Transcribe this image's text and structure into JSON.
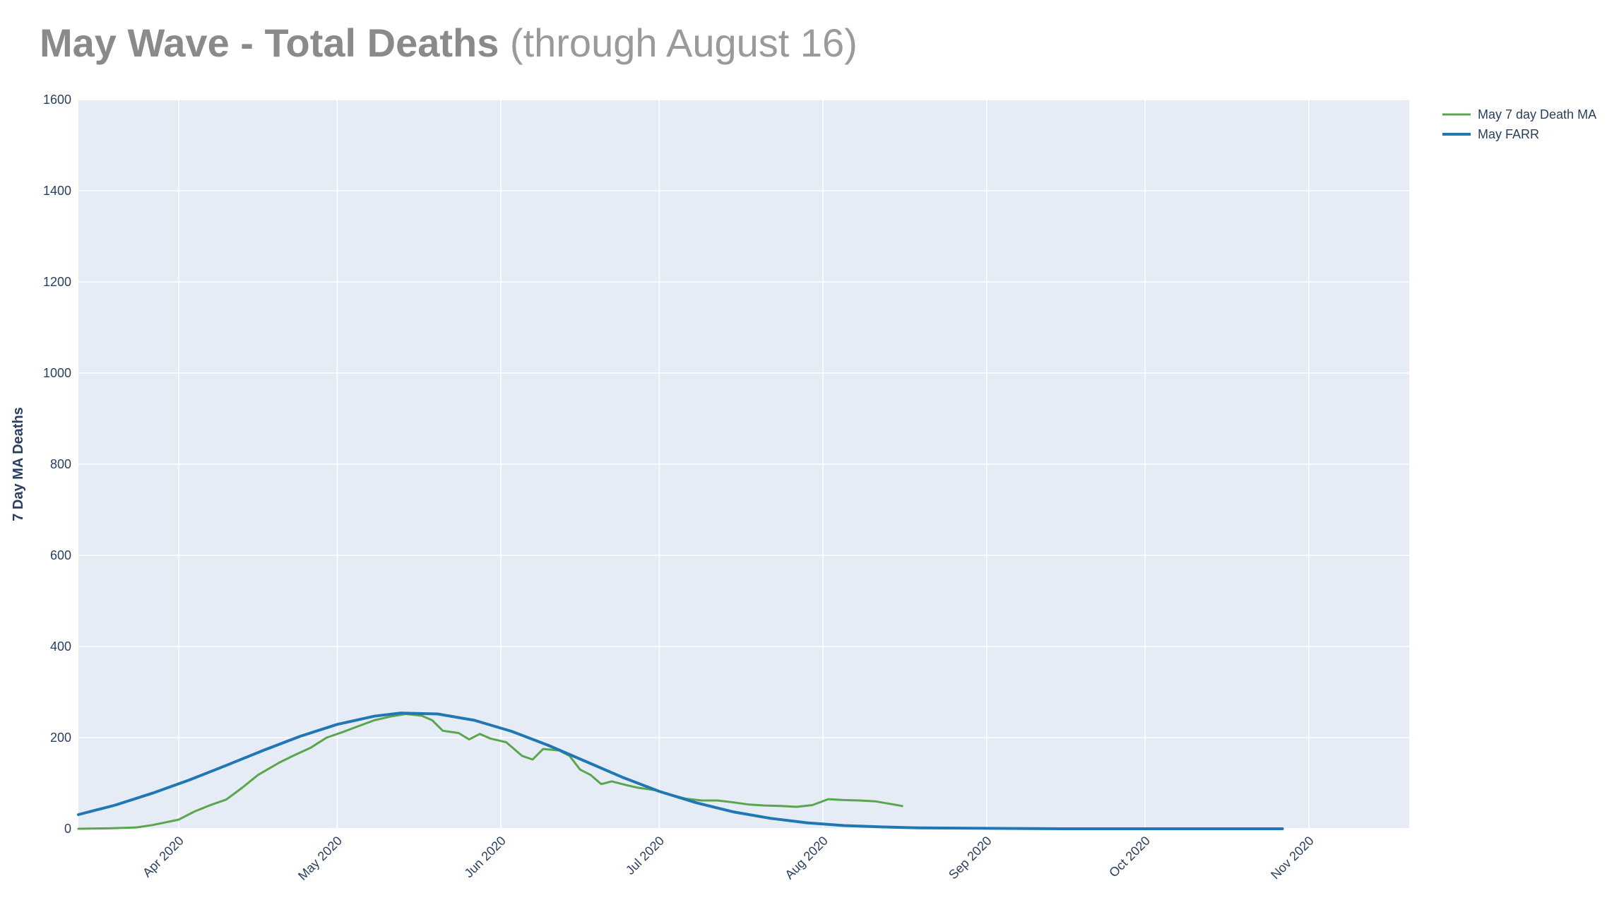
{
  "title": {
    "bold": "May Wave - Total Deaths",
    "light": " (through August 16)"
  },
  "colors": {
    "plot_bg": "#e5ecf6",
    "grid": "#ffffff",
    "ma": "#5aa64f",
    "farr": "#1f77b4"
  },
  "chart_data": {
    "type": "line",
    "title": "May Wave - Total Deaths (through August 16)",
    "xlabel": "",
    "ylabel": "7 Day MA Deaths",
    "xlim": [
      "2020-03-13",
      "2020-11-20"
    ],
    "ylim": [
      0,
      1600
    ],
    "grid": true,
    "legend_position": "top-right",
    "y_ticks": [
      0,
      200,
      400,
      600,
      800,
      1000,
      1200,
      1400,
      1600
    ],
    "x_ticks": [
      {
        "date": "2020-04-01",
        "label": "Apr 2020"
      },
      {
        "date": "2020-05-01",
        "label": "May 2020"
      },
      {
        "date": "2020-06-01",
        "label": "Jun 2020"
      },
      {
        "date": "2020-07-01",
        "label": "Jul 2020"
      },
      {
        "date": "2020-08-01",
        "label": "Aug 2020"
      },
      {
        "date": "2020-09-01",
        "label": "Sep 2020"
      },
      {
        "date": "2020-10-01",
        "label": "Oct 2020"
      },
      {
        "date": "2020-11-01",
        "label": "Nov 2020"
      }
    ],
    "series": [
      {
        "name": "May 7 day Death MA",
        "color": "#5aa64f",
        "points": [
          [
            "2020-03-13",
            0
          ],
          [
            "2020-03-19",
            1
          ],
          [
            "2020-03-24",
            3
          ],
          [
            "2020-03-27",
            8
          ],
          [
            "2020-04-01",
            20
          ],
          [
            "2020-04-04",
            38
          ],
          [
            "2020-04-07",
            52
          ],
          [
            "2020-04-10",
            64
          ],
          [
            "2020-04-13",
            90
          ],
          [
            "2020-04-16",
            118
          ],
          [
            "2020-04-20",
            145
          ],
          [
            "2020-04-23",
            162
          ],
          [
            "2020-04-26",
            178
          ],
          [
            "2020-04-29",
            200
          ],
          [
            "2020-05-02",
            212
          ],
          [
            "2020-05-05",
            225
          ],
          [
            "2020-05-08",
            238
          ],
          [
            "2020-05-11",
            246
          ],
          [
            "2020-05-14",
            252
          ],
          [
            "2020-05-17",
            248
          ],
          [
            "2020-05-19",
            238
          ],
          [
            "2020-05-21",
            215
          ],
          [
            "2020-05-24",
            210
          ],
          [
            "2020-05-26",
            196
          ],
          [
            "2020-05-28",
            208
          ],
          [
            "2020-05-30",
            198
          ],
          [
            "2020-06-02",
            190
          ],
          [
            "2020-06-05",
            160
          ],
          [
            "2020-06-07",
            152
          ],
          [
            "2020-06-09",
            175
          ],
          [
            "2020-06-12",
            172
          ],
          [
            "2020-06-14",
            160
          ],
          [
            "2020-06-16",
            130
          ],
          [
            "2020-06-18",
            118
          ],
          [
            "2020-06-20",
            98
          ],
          [
            "2020-06-22",
            104
          ],
          [
            "2020-06-25",
            95
          ],
          [
            "2020-06-27",
            90
          ],
          [
            "2020-06-30",
            85
          ],
          [
            "2020-07-03",
            75
          ],
          [
            "2020-07-06",
            66
          ],
          [
            "2020-07-09",
            62
          ],
          [
            "2020-07-12",
            62
          ],
          [
            "2020-07-15",
            58
          ],
          [
            "2020-07-18",
            53
          ],
          [
            "2020-07-21",
            51
          ],
          [
            "2020-07-24",
            50
          ],
          [
            "2020-07-27",
            48
          ],
          [
            "2020-07-30",
            52
          ],
          [
            "2020-08-02",
            65
          ],
          [
            "2020-08-05",
            63
          ],
          [
            "2020-08-08",
            62
          ],
          [
            "2020-08-11",
            60
          ],
          [
            "2020-08-14",
            54
          ],
          [
            "2020-08-16",
            50
          ]
        ]
      },
      {
        "name": "May FARR",
        "color": "#1f77b4",
        "points": [
          [
            "2020-03-13",
            31
          ],
          [
            "2020-03-20",
            52
          ],
          [
            "2020-03-27",
            78
          ],
          [
            "2020-04-03",
            107
          ],
          [
            "2020-04-10",
            139
          ],
          [
            "2020-04-17",
            172
          ],
          [
            "2020-04-24",
            203
          ],
          [
            "2020-05-01",
            229
          ],
          [
            "2020-05-08",
            247
          ],
          [
            "2020-05-13",
            254
          ],
          [
            "2020-05-20",
            252
          ],
          [
            "2020-05-27",
            238
          ],
          [
            "2020-06-03",
            214
          ],
          [
            "2020-06-10",
            183
          ],
          [
            "2020-06-17",
            148
          ],
          [
            "2020-06-24",
            113
          ],
          [
            "2020-07-01",
            82
          ],
          [
            "2020-07-08",
            57
          ],
          [
            "2020-07-15",
            37
          ],
          [
            "2020-07-22",
            23
          ],
          [
            "2020-07-29",
            13
          ],
          [
            "2020-08-05",
            7
          ],
          [
            "2020-08-12",
            4
          ],
          [
            "2020-08-19",
            2
          ],
          [
            "2020-09-01",
            1
          ],
          [
            "2020-09-15",
            0
          ],
          [
            "2020-10-01",
            0
          ],
          [
            "2020-10-15",
            0
          ],
          [
            "2020-10-27",
            0
          ]
        ]
      }
    ]
  }
}
